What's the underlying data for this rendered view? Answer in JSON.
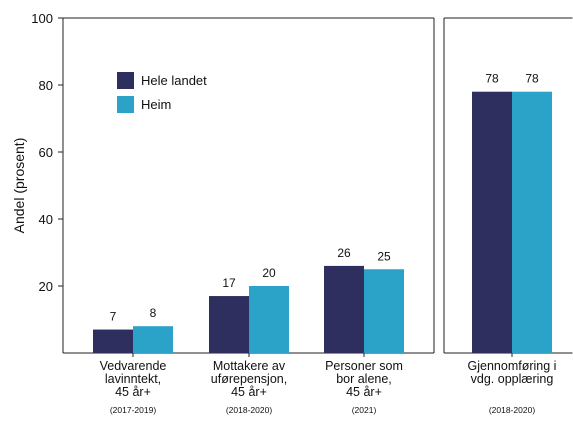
{
  "chart_data": {
    "type": "bar",
    "ylabel": "Andel (prosent)",
    "ylim": [
      0,
      100
    ],
    "yticks": [
      20,
      40,
      60,
      80,
      100
    ],
    "grid": false,
    "legend_position": "top-left",
    "colors": {
      "Hele landet": "#2e2f5e",
      "Heim": "#2ba2c8"
    },
    "series": [
      {
        "name": "Hele landet"
      },
      {
        "name": "Heim"
      }
    ],
    "panels": [
      {
        "categories": [
          {
            "label": [
              "Vedvarende",
              "lavinntekt,",
              "45 år+"
            ],
            "period": "(2017-2019)",
            "values": [
              7,
              8
            ]
          },
          {
            "label": [
              "Mottakere av",
              "uførepensjon,",
              "45 år+"
            ],
            "period": "(2018-2020)",
            "values": [
              17,
              20
            ]
          },
          {
            "label": [
              "Personer som",
              "bor alene,",
              "45 år+"
            ],
            "period": "(2021)",
            "values": [
              26,
              25
            ]
          }
        ]
      },
      {
        "categories": [
          {
            "label": [
              "Gjennomføring i",
              "vdg. opplæring"
            ],
            "period": "(2018-2020)",
            "values": [
              78,
              78
            ]
          }
        ]
      }
    ]
  }
}
